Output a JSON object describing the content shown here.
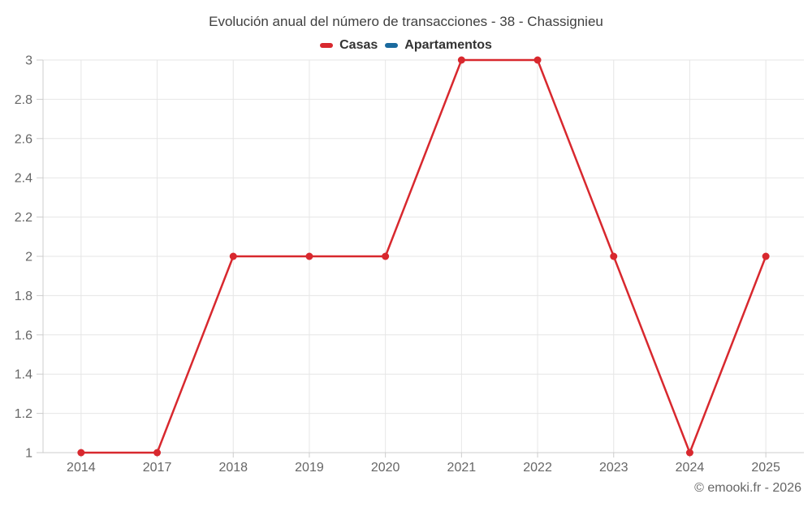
{
  "title": "Evolución anual del número de transacciones - 38 - Chassignieu",
  "footer": {
    "text": "© emooki.fr - 2026"
  },
  "legend": {
    "items": [
      {
        "label": "Casas",
        "color": "#d8282e"
      },
      {
        "label": "Apartamentos",
        "color": "#1a6a9e"
      }
    ]
  },
  "chart_data": {
    "type": "line",
    "title": "Evolución anual del número de transacciones - 38 - Chassignieu",
    "categories": [
      "2014",
      "2017",
      "2018",
      "2019",
      "2020",
      "2021",
      "2022",
      "2023",
      "2024",
      "2025"
    ],
    "series": [
      {
        "name": "Casas",
        "color": "#d8282e",
        "values": [
          1,
          1,
          2,
          2,
          2,
          3,
          3,
          2,
          1,
          2
        ]
      },
      {
        "name": "Apartamentos",
        "color": "#1a6a9e",
        "values": []
      }
    ],
    "xlabel": "",
    "ylabel": "",
    "ylim": [
      1,
      3
    ],
    "ytick_step": 0.2,
    "grid": true,
    "legend_position": "top",
    "marker": "circle"
  },
  "style": {
    "grid_color": "#e6e6e6",
    "axis_color": "#cccccc",
    "tick_label_color": "#666666"
  }
}
